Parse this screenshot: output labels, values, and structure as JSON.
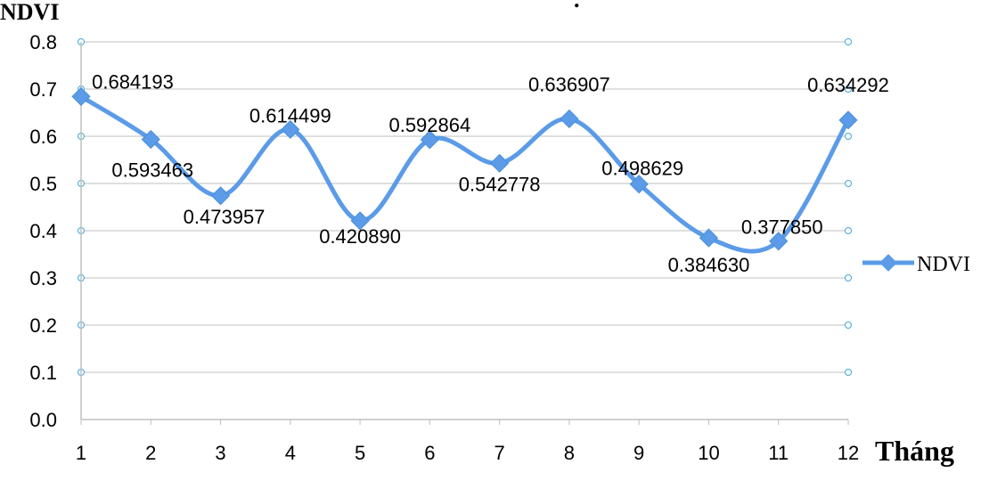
{
  "chart_data": {
    "type": "line",
    "ylabel": "NDVI",
    "xlabel": "Tháng",
    "categories": [
      "1",
      "2",
      "3",
      "4",
      "5",
      "6",
      "7",
      "8",
      "9",
      "10",
      "11",
      "12"
    ],
    "series": [
      {
        "name": "NDVI",
        "values": [
          0.684193,
          0.593463,
          0.473957,
          0.614499,
          0.42089,
          0.592864,
          0.542778,
          0.636907,
          0.498629,
          0.38463,
          0.37785,
          0.634292
        ],
        "labels": [
          "0.684193",
          "0.593463",
          "0.473957",
          "0.614499",
          "0.420890",
          "0.592864",
          "0.542778",
          "0.636907",
          "0.498629",
          "0.384630",
          "0.377850",
          "0.634292"
        ]
      }
    ],
    "yticks": [
      "0.0",
      "0.1",
      "0.2",
      "0.3",
      "0.4",
      "0.5",
      "0.6",
      "0.7",
      "0.8"
    ],
    "ylim": [
      0,
      0.8
    ],
    "grid": true,
    "smooth": true,
    "legend_position": "right",
    "colors": {
      "series": "#5B9BE8",
      "grid": "#BFBFBF",
      "marker_outline": "#4A90D9"
    }
  }
}
